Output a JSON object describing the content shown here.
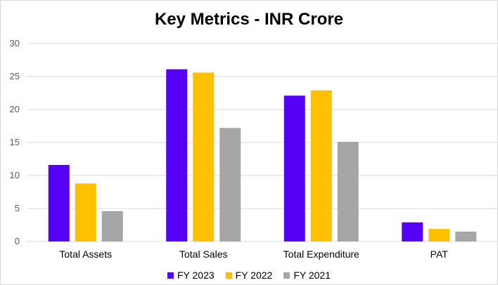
{
  "chart_data": {
    "type": "bar",
    "title": "Key Metrics - INR Crore",
    "categories": [
      "Total Assets",
      "Total Sales",
      "Total Expenditure",
      "PAT"
    ],
    "series": [
      {
        "name": "FY 2023",
        "color": "#5500f5",
        "values": [
          11.6,
          26.1,
          22.1,
          2.9
        ]
      },
      {
        "name": "FY 2022",
        "color": "#ffc000",
        "values": [
          8.8,
          25.6,
          22.9,
          1.9
        ]
      },
      {
        "name": "FY 2021",
        "color": "#a6a6a6",
        "values": [
          4.6,
          17.2,
          15.1,
          1.5
        ]
      }
    ],
    "ylim": [
      0,
      30
    ],
    "yticks": [
      0,
      5,
      10,
      15,
      20,
      25,
      30
    ],
    "xlabel": "",
    "ylabel": "",
    "grid": true,
    "legend": "bottom"
  }
}
